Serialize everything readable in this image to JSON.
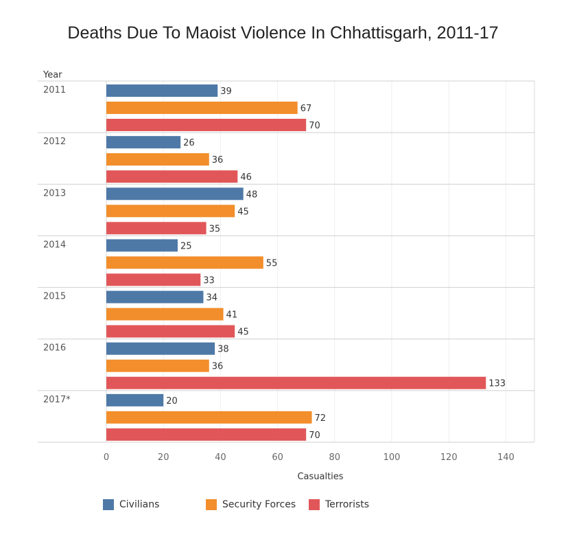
{
  "chart_data": {
    "type": "bar",
    "orientation": "horizontal",
    "title": "Deaths Due To Maoist Violence In Chhattisgarh, 2011-17",
    "ylabel": "Year",
    "xlabel": "Casualties",
    "categories": [
      "2011",
      "2012",
      "2013",
      "2014",
      "2015",
      "2016",
      "2017*"
    ],
    "series": [
      {
        "name": "Civilians",
        "color": "#4e79a7",
        "values": [
          39,
          26,
          48,
          25,
          34,
          38,
          20
        ]
      },
      {
        "name": "Security Forces",
        "color": "#f28e2b",
        "values": [
          67,
          36,
          45,
          55,
          41,
          36,
          72
        ]
      },
      {
        "name": "Terrorists",
        "color": "#e15759",
        "values": [
          70,
          46,
          35,
          33,
          45,
          133,
          70
        ]
      }
    ],
    "xlim": [
      0,
      150
    ],
    "xticks": [
      0,
      20,
      40,
      60,
      80,
      100,
      120,
      140
    ],
    "grid": true,
    "legend": "bottom-left"
  }
}
